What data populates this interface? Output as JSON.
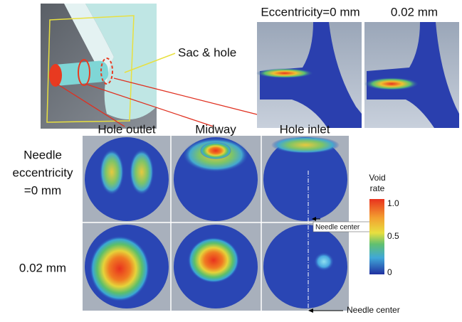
{
  "top_labels": {
    "eccentricity_zero": "Eccentricity=0 mm",
    "eccentricity_small": "0.02 mm"
  },
  "callout": "Sac & hole",
  "columns": [
    "Hole outlet",
    "Midway",
    "Hole inlet"
  ],
  "rows": [
    [
      "Needle",
      "eccentricity",
      "=0 mm"
    ],
    [
      "0.02 mm"
    ]
  ],
  "colorbar": {
    "title": [
      "Void",
      "rate"
    ],
    "ticks": [
      "1.0",
      "0.5",
      "0"
    ]
  },
  "needle_center": [
    "Needle center",
    "Needle center"
  ]
}
